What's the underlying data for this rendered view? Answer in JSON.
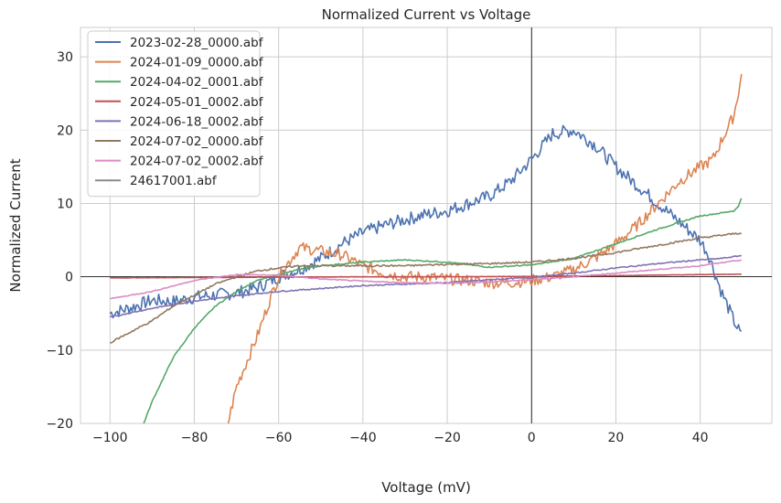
{
  "chart_data": {
    "type": "line",
    "title": "Normalized Current vs Voltage",
    "xlabel": "Voltage (mV)",
    "ylabel": "Normalized Current",
    "xlim": [
      -107,
      57
    ],
    "ylim": [
      -20,
      34
    ],
    "xticks": [
      -100,
      -80,
      -60,
      -40,
      -20,
      0,
      20,
      40
    ],
    "yticks": [
      -20,
      -10,
      0,
      10,
      20,
      30
    ],
    "grid": true,
    "legend": "top-left",
    "reference_lines": [
      {
        "axis": "x",
        "value": 0
      },
      {
        "axis": "y",
        "value": 0
      }
    ],
    "series": [
      {
        "name": "2023-02-28_0000.abf",
        "color": "#4c72b0",
        "noise": 0.9,
        "points": [
          [
            -100,
            -5
          ],
          [
            -95,
            -4.2
          ],
          [
            -90,
            -3.2
          ],
          [
            -85,
            -3.4
          ],
          [
            -80,
            -2.8
          ],
          [
            -75,
            -2.5
          ],
          [
            -70,
            -2.2
          ],
          [
            -65,
            -1.5
          ],
          [
            -60,
            0
          ],
          [
            -55,
            1
          ],
          [
            -50,
            2.5
          ],
          [
            -45,
            4.5
          ],
          [
            -40,
            6
          ],
          [
            -35,
            7
          ],
          [
            -30,
            7.8
          ],
          [
            -25,
            8.5
          ],
          [
            -20,
            9
          ],
          [
            -15,
            10
          ],
          [
            -10,
            11
          ],
          [
            -5,
            13
          ],
          [
            0,
            16
          ],
          [
            5,
            19.5
          ],
          [
            10,
            20
          ],
          [
            15,
            18
          ],
          [
            20,
            15
          ],
          [
            25,
            12.5
          ],
          [
            30,
            10
          ],
          [
            35,
            7.5
          ],
          [
            40,
            5
          ],
          [
            42,
            3
          ],
          [
            45,
            -2
          ],
          [
            48,
            -6
          ],
          [
            50,
            -8.3
          ]
        ]
      },
      {
        "name": "2024-01-09_0000.abf",
        "color": "#dd8452",
        "noise": 0.8,
        "points": [
          [
            -72,
            -20
          ],
          [
            -70,
            -15
          ],
          [
            -65,
            -8
          ],
          [
            -62,
            -3
          ],
          [
            -60,
            0
          ],
          [
            -57,
            2.5
          ],
          [
            -55,
            4
          ],
          [
            -50,
            3.5
          ],
          [
            -45,
            3
          ],
          [
            -40,
            1.5
          ],
          [
            -35,
            0.5
          ],
          [
            -30,
            0
          ],
          [
            -25,
            0
          ],
          [
            -20,
            -0.3
          ],
          [
            -15,
            -0.5
          ],
          [
            -10,
            -0.8
          ],
          [
            -5,
            -0.8
          ],
          [
            0,
            -0.5
          ],
          [
            5,
            0
          ],
          [
            10,
            1
          ],
          [
            15,
            2.5
          ],
          [
            20,
            4.5
          ],
          [
            25,
            7
          ],
          [
            30,
            10
          ],
          [
            35,
            13
          ],
          [
            40,
            15
          ],
          [
            43,
            16
          ],
          [
            45,
            18.5
          ],
          [
            48,
            22
          ],
          [
            50,
            28
          ]
        ]
      },
      {
        "name": "2024-04-02_0001.abf",
        "color": "#55a868",
        "noise": 0.08,
        "points": [
          [
            -92,
            -20
          ],
          [
            -90,
            -17
          ],
          [
            -85,
            -11
          ],
          [
            -80,
            -7
          ],
          [
            -75,
            -4
          ],
          [
            -70,
            -2
          ],
          [
            -65,
            -0.5
          ],
          [
            -60,
            0.3
          ],
          [
            -55,
            1
          ],
          [
            -50,
            1.5
          ],
          [
            -40,
            2
          ],
          [
            -30,
            2.3
          ],
          [
            -20,
            2
          ],
          [
            -10,
            1.3
          ],
          [
            0,
            1.6
          ],
          [
            10,
            2.5
          ],
          [
            20,
            4.5
          ],
          [
            30,
            6.5
          ],
          [
            40,
            8.3
          ],
          [
            45,
            8.7
          ],
          [
            48,
            9
          ],
          [
            49,
            9.5
          ],
          [
            50,
            11.2
          ]
        ]
      },
      {
        "name": "2024-05-01_0002.abf",
        "color": "#c44e52",
        "noise": 0.02,
        "points": [
          [
            -100,
            -0.15
          ],
          [
            -80,
            -0.1
          ],
          [
            -60,
            -0.05
          ],
          [
            -40,
            0
          ],
          [
            -20,
            0
          ],
          [
            0,
            0.05
          ],
          [
            20,
            0.15
          ],
          [
            40,
            0.3
          ],
          [
            50,
            0.35
          ]
        ]
      },
      {
        "name": "2024-06-18_0002.abf",
        "color": "#8172b3",
        "noise": 0.08,
        "points": [
          [
            -100,
            -5.5
          ],
          [
            -90,
            -4.3
          ],
          [
            -80,
            -3.3
          ],
          [
            -70,
            -2.6
          ],
          [
            -60,
            -2
          ],
          [
            -50,
            -1.6
          ],
          [
            -40,
            -1.2
          ],
          [
            -30,
            -1
          ],
          [
            -20,
            -0.8
          ],
          [
            -10,
            -0.4
          ],
          [
            0,
            -0.1
          ],
          [
            10,
            0.5
          ],
          [
            20,
            1.2
          ],
          [
            30,
            1.8
          ],
          [
            40,
            2.3
          ],
          [
            45,
            2.5
          ],
          [
            50,
            2.9
          ]
        ]
      },
      {
        "name": "2024-07-02_0000.abf",
        "color": "#937860",
        "noise": 0.12,
        "points": [
          [
            -100,
            -9
          ],
          [
            -95,
            -7.5
          ],
          [
            -90,
            -6
          ],
          [
            -85,
            -4
          ],
          [
            -80,
            -2.5
          ],
          [
            -75,
            -1
          ],
          [
            -70,
            0
          ],
          [
            -65,
            0.8
          ],
          [
            -60,
            1.2
          ],
          [
            -55,
            1.5
          ],
          [
            -50,
            1.5
          ],
          [
            -40,
            1.5
          ],
          [
            -30,
            1.5
          ],
          [
            -20,
            1.7
          ],
          [
            -10,
            1.8
          ],
          [
            0,
            2
          ],
          [
            10,
            2.5
          ],
          [
            20,
            3.3
          ],
          [
            30,
            4.3
          ],
          [
            40,
            5.3
          ],
          [
            50,
            6
          ]
        ]
      },
      {
        "name": "2024-07-02_0002.abf",
        "color": "#da8bc3",
        "noise": 0.06,
        "points": [
          [
            -100,
            -3
          ],
          [
            -90,
            -2
          ],
          [
            -80,
            -0.5
          ],
          [
            -70,
            0.3
          ],
          [
            -60,
            0.2
          ],
          [
            -50,
            -0.3
          ],
          [
            -40,
            -0.6
          ],
          [
            -30,
            -0.8
          ],
          [
            -20,
            -0.9
          ],
          [
            -10,
            -0.7
          ],
          [
            0,
            -0.4
          ],
          [
            10,
            0
          ],
          [
            20,
            0.5
          ],
          [
            30,
            1
          ],
          [
            40,
            1.5
          ],
          [
            50,
            2.3
          ]
        ]
      },
      {
        "name": "24617001.abf",
        "color": "#8c8c8c",
        "noise": 0,
        "points": []
      }
    ]
  }
}
